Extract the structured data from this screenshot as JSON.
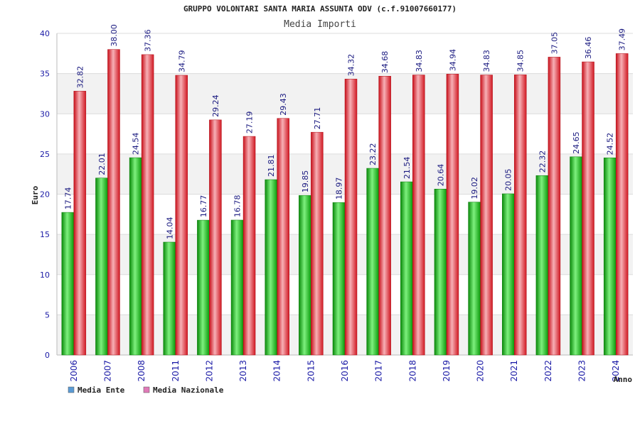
{
  "chart_data": {
    "type": "bar",
    "title": "GRUPPO VOLONTARI SANTA MARIA ASSUNTA ODV (c.f.91007660177)",
    "subtitle": "Media Importi",
    "xlabel": "Anno",
    "ylabel": "Euro",
    "ylim": [
      0,
      40
    ],
    "yticks": [
      0,
      5,
      10,
      15,
      20,
      25,
      30,
      35,
      40
    ],
    "categories": [
      "2006",
      "2007",
      "2008",
      "2011",
      "2012",
      "2013",
      "2014",
      "2015",
      "2016",
      "2017",
      "2018",
      "2019",
      "2020",
      "2021",
      "2022",
      "2023",
      "2024"
    ],
    "series": [
      {
        "name": "Media Ente",
        "color": "#11b511",
        "legend_color": "#5b9bd5",
        "values": [
          17.74,
          22.01,
          24.54,
          14.04,
          16.77,
          16.78,
          21.81,
          19.85,
          18.97,
          23.22,
          21.54,
          20.64,
          19.02,
          20.05,
          22.32,
          24.65,
          24.52
        ],
        "labels": [
          "17.74",
          "22.01",
          "24.54",
          "14.04",
          "16.77",
          "16.78",
          "21.81",
          "19.85",
          "18.97",
          "23.22",
          "21.54",
          "20.64",
          "19.02",
          "20.05",
          "22.32",
          "24.65",
          "24.52"
        ]
      },
      {
        "name": "Media Nazionale",
        "color": "#e0202a",
        "legend_color": "#e07ab8",
        "values": [
          32.82,
          38.0,
          37.36,
          34.79,
          29.24,
          27.19,
          29.43,
          27.71,
          34.32,
          34.68,
          34.83,
          34.94,
          34.83,
          34.85,
          37.05,
          36.46,
          37.49
        ],
        "labels": [
          "32.82",
          "38.00",
          "37.36",
          "34.79",
          "29.24",
          "27.19",
          "29.43",
          "27.71",
          "34.32",
          "34.68",
          "34.83",
          "34.94",
          "34.83",
          "34.85",
          "37.05",
          "36.46",
          "37.49"
        ]
      }
    ],
    "grid": true,
    "legend": "bottom-left"
  }
}
